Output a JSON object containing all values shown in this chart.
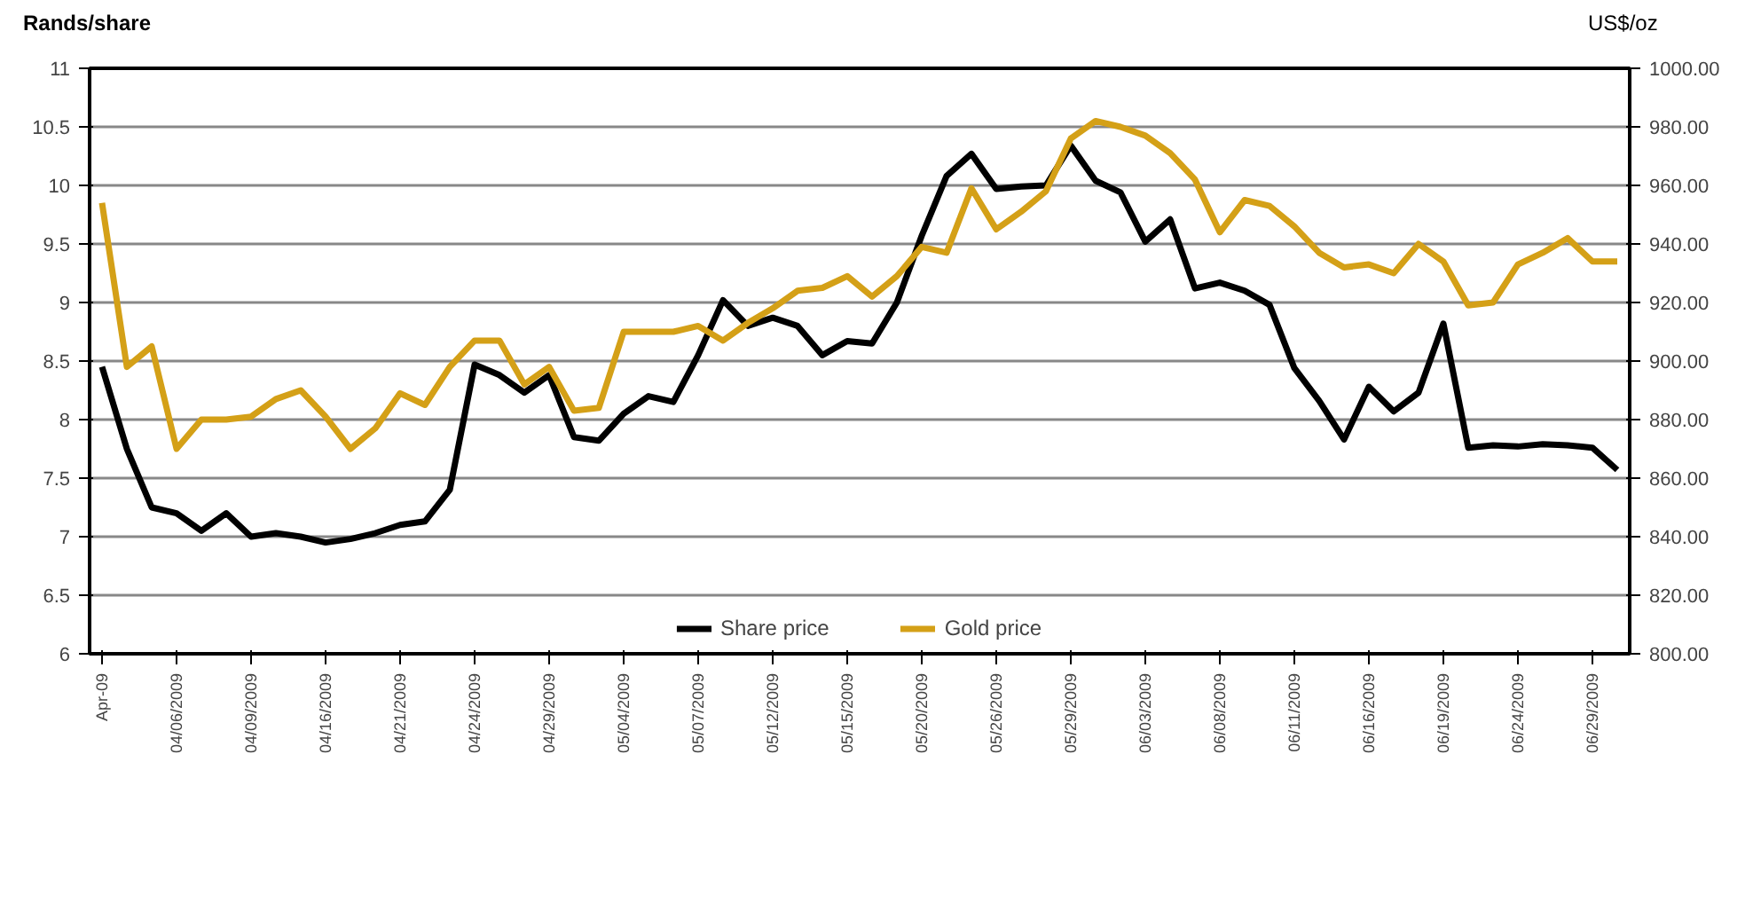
{
  "chart_data": {
    "type": "line",
    "ylabel": "Rands/share",
    "y2label": "US$/oz",
    "categories": [
      "Apr-09",
      null,
      null,
      "04/06/2009",
      null,
      null,
      "04/09/2009",
      null,
      null,
      "04/16/2009",
      null,
      null,
      "04/21/2009",
      null,
      null,
      "04/24/2009",
      null,
      null,
      "04/29/2009",
      null,
      null,
      "05/04/2009",
      null,
      null,
      "05/07/2009",
      null,
      null,
      "05/12/2009",
      null,
      null,
      "05/15/2009",
      null,
      null,
      "05/20/2009",
      null,
      null,
      "05/26/2009",
      null,
      null,
      "05/29/2009",
      null,
      null,
      "06/03/2009",
      null,
      null,
      "06/08/2009",
      null,
      null,
      "06/11/2009",
      null,
      null,
      "06/16/2009",
      null,
      null,
      "06/19/2009",
      null,
      null,
      "06/24/2009",
      null,
      null,
      "06/29/2009",
      null
    ],
    "series": [
      {
        "name": "Share price",
        "color": "#000000",
        "values": [
          8.45,
          7.75,
          7.25,
          7.2,
          7.05,
          7.2,
          7.0,
          7.03,
          7.0,
          6.95,
          6.98,
          7.03,
          7.1,
          7.13,
          7.4,
          8.47,
          8.38,
          8.23,
          8.38,
          7.85,
          7.82,
          8.05,
          8.2,
          8.15,
          8.55,
          9.02,
          8.8,
          8.87,
          8.8,
          8.55,
          8.67,
          8.65,
          9.0,
          9.57,
          10.08,
          10.27,
          9.97,
          9.99,
          10.0,
          10.34,
          10.04,
          9.94,
          9.52,
          9.71,
          9.12,
          9.17,
          9.1,
          8.98,
          8.44,
          8.16,
          7.83,
          8.28,
          8.07,
          8.23,
          8.82,
          7.76,
          7.78,
          7.77,
          7.79,
          7.78,
          7.76,
          7.57
        ]
      },
      {
        "name": "Gold price",
        "color": "#d4a017",
        "axis": "y2",
        "values": [
          954,
          898,
          905,
          870,
          880,
          880,
          881,
          887,
          890,
          881,
          870,
          877,
          889,
          885,
          898,
          907,
          907,
          892,
          898,
          883,
          884,
          910,
          910,
          910,
          912,
          907,
          913,
          918,
          924,
          925,
          929,
          922,
          929,
          939,
          937,
          959,
          945,
          951,
          958,
          976,
          982,
          980,
          977,
          971,
          962,
          944,
          955,
          953,
          946,
          937,
          932,
          933,
          930,
          940,
          934,
          919,
          920,
          933,
          937,
          942,
          934,
          934
        ]
      }
    ],
    "ylim": [
      6,
      11
    ],
    "yticks": [
      6,
      6.5,
      7,
      7.5,
      8,
      8.5,
      9,
      9.5,
      10,
      10.5,
      11
    ],
    "y2lim": [
      800,
      1000
    ],
    "y2ticks": [
      {
        "value": 800,
        "label": "800.00"
      },
      {
        "value": 820,
        "label": "820.00"
      },
      {
        "value": 840,
        "label": "840.00"
      },
      {
        "value": 860,
        "label": "860.00"
      },
      {
        "value": 880,
        "label": "880.00"
      },
      {
        "value": 900,
        "label": "900.00"
      },
      {
        "value": 920,
        "label": "920.00"
      },
      {
        "value": 940,
        "label": "940.00"
      },
      {
        "value": 960,
        "label": "960.00"
      },
      {
        "value": 980,
        "label": "980.00"
      },
      {
        "value": 1000,
        "label": "1000.00"
      }
    ],
    "grid": "y",
    "legend": "bottom",
    "marker": "none",
    "line_style": "solid"
  }
}
